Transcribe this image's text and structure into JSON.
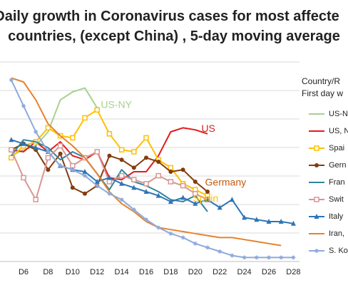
{
  "title_line1": "Daily growth in Coronavirus cases for most affecte",
  "title_line2": "countries, (except China) , 5-day moving average",
  "legend_title": [
    "Country/R",
    "First day w"
  ],
  "chart_data": {
    "type": "line",
    "title": "Daily growth in Coronavirus cases for most affected countries, (except China) , 5-day moving average",
    "x_tick_labels": [
      "D6",
      "D8",
      "D10",
      "D12",
      "D14",
      "D16",
      "D18",
      "D20",
      "D22",
      "D24",
      "D26",
      "D28"
    ],
    "x_range": [
      3.5,
      28.5
    ],
    "y_range": [
      0,
      1
    ],
    "grid": "horizontal",
    "legend_placement": "right",
    "series": [
      {
        "name": "US-N",
        "label": "US-NY",
        "color": "#a9d18e",
        "marker": "none",
        "x": [
          5,
          6,
          7,
          8,
          9,
          10,
          11,
          12
        ],
        "y": [
          0.53,
          0.56,
          0.58,
          0.65,
          0.81,
          0.85,
          0.87,
          0.77
        ]
      },
      {
        "name": "US, N",
        "label": "US",
        "color": "#e31a1c",
        "marker": "none",
        "x": [
          5,
          6,
          7,
          8,
          9,
          10,
          11,
          12,
          13,
          14,
          15,
          16,
          17,
          18,
          19,
          20,
          21
        ],
        "y": [
          0.56,
          0.55,
          0.6,
          0.55,
          0.6,
          0.53,
          0.51,
          0.55,
          0.42,
          0.41,
          0.45,
          0.45,
          0.53,
          0.65,
          0.67,
          0.66,
          0.64
        ]
      },
      {
        "name": "Spai",
        "label": "Spain",
        "color": "#ffc000",
        "marker": "square",
        "x": [
          5,
          6,
          7,
          8,
          9,
          10,
          11,
          12,
          13,
          14,
          15,
          16,
          17,
          18,
          19,
          20,
          21
        ],
        "y": [
          0.52,
          0.58,
          0.6,
          0.67,
          0.63,
          0.62,
          0.72,
          0.76,
          0.64,
          0.56,
          0.55,
          0.62,
          0.51,
          0.47,
          0.39,
          0.36,
          0.33
        ]
      },
      {
        "name": "Gern",
        "label": "Germany",
        "color": "#843c0c",
        "marker": "circle",
        "x": [
          5,
          6,
          7,
          8,
          9,
          10,
          11,
          12,
          13,
          14,
          15,
          16,
          17,
          18,
          19,
          20,
          21
        ],
        "y": [
          0.56,
          0.59,
          0.56,
          0.46,
          0.54,
          0.37,
          0.34,
          0.38,
          0.53,
          0.51,
          0.47,
          0.52,
          0.5,
          0.45,
          0.46,
          0.4,
          0.35
        ]
      },
      {
        "name": "Fran",
        "label": "",
        "color": "#31859c",
        "marker": "none",
        "x": [
          5,
          6,
          7,
          8,
          9,
          10,
          11,
          12,
          13,
          14,
          15,
          16,
          17,
          18,
          19,
          20,
          21
        ],
        "y": [
          0.53,
          0.61,
          0.6,
          0.57,
          0.51,
          0.55,
          0.52,
          0.44,
          0.36,
          0.46,
          0.4,
          0.38,
          0.35,
          0.31,
          0.3,
          0.33,
          0.25
        ]
      },
      {
        "name": "Swit",
        "label": "",
        "color": "#d99694",
        "marker": "square",
        "x": [
          5,
          6,
          7,
          8,
          9,
          10,
          11,
          12,
          13,
          14,
          15,
          16,
          17,
          18,
          19,
          20,
          21
        ],
        "y": [
          0.56,
          0.42,
          0.31,
          0.52,
          0.58,
          0.48,
          0.52,
          0.55,
          0.4,
          0.43,
          0.41,
          0.39,
          0.43,
          0.4,
          0.38,
          0.34,
          0.31
        ]
      },
      {
        "name": "Italy",
        "label": "",
        "color": "#2e75b6",
        "marker": "triangle",
        "x": [
          5,
          6,
          7,
          8,
          9,
          10,
          11,
          12,
          13,
          14,
          15,
          16,
          17,
          18,
          19,
          20,
          21,
          22,
          23,
          24,
          25,
          26,
          27,
          28
        ],
        "y": [
          0.61,
          0.59,
          0.57,
          0.55,
          0.48,
          0.46,
          0.45,
          0.4,
          0.42,
          0.39,
          0.37,
          0.35,
          0.33,
          0.3,
          0.32,
          0.29,
          0.31,
          0.27,
          0.31,
          0.22,
          0.21,
          0.2,
          0.2,
          0.19
        ]
      },
      {
        "name": "Iran,",
        "label": "",
        "color": "#e6822e",
        "marker": "none",
        "x": [
          5,
          6,
          7,
          8,
          9,
          10,
          11,
          12,
          13,
          14,
          15,
          16,
          17,
          18,
          19,
          20,
          21,
          22,
          23,
          24,
          25,
          26,
          27
        ],
        "y": [
          0.92,
          0.9,
          0.81,
          0.69,
          0.63,
          0.58,
          0.52,
          0.44,
          0.35,
          0.29,
          0.25,
          0.2,
          0.17,
          0.16,
          0.15,
          0.14,
          0.13,
          0.12,
          0.12,
          0.11,
          0.1,
          0.09,
          0.08
        ]
      },
      {
        "name": "S. Ko",
        "label": "",
        "color": "#8eaadb",
        "marker": "star",
        "x": [
          5,
          6,
          7,
          8,
          9,
          10,
          11,
          12,
          13,
          14,
          15,
          16,
          17,
          18,
          19,
          20,
          21,
          22,
          23,
          24,
          25,
          26,
          27,
          28
        ],
        "y": [
          0.91,
          0.78,
          0.65,
          0.55,
          0.48,
          0.46,
          0.43,
          0.38,
          0.34,
          0.31,
          0.26,
          0.21,
          0.17,
          0.14,
          0.12,
          0.09,
          0.07,
          0.05,
          0.03,
          0.02,
          0.02,
          0.02,
          0.02,
          0.02
        ]
      }
    ],
    "annotations": [
      {
        "text": "US-NY",
        "color": "#a9d18e",
        "x": 12.3,
        "y": 0.77
      },
      {
        "text": "US",
        "color": "#e31a1c",
        "x": 20.5,
        "y": 0.65
      },
      {
        "text": "Germany",
        "color": "#c55a11",
        "x": 20.8,
        "y": 0.38
      },
      {
        "text": "Spain",
        "color": "#ffc000",
        "x": 19.8,
        "y": 0.3
      }
    ]
  }
}
